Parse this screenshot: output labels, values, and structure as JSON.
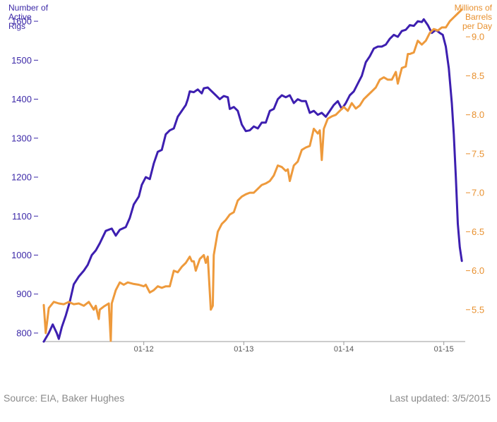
{
  "chart_data": {
    "type": "line",
    "dual_axis": true,
    "title": "",
    "y_left": {
      "label": [
        "Number of",
        "Active",
        "Rigs"
      ],
      "range": [
        780,
        1640
      ],
      "ticks": [
        800,
        900,
        1000,
        1100,
        1200,
        1300,
        1400,
        1500,
        1600
      ],
      "color": "#3d1fb0"
    },
    "y_right": {
      "label": [
        "Millions of",
        "Barrels",
        "per Day"
      ],
      "range": [
        5.1,
        9.4
      ],
      "ticks": [
        "5.5",
        "6.0",
        "6.5",
        "7.0",
        "7.5",
        "8.0",
        "8.5",
        "9.0"
      ],
      "color": "#ee9a3c"
    },
    "x_axis": {
      "range": [
        2011.0,
        2015.2
      ],
      "ticks": [
        {
          "label": "01-12",
          "value": 2012.0
        },
        {
          "label": "01-13",
          "value": 2013.0
        },
        {
          "label": "01-14",
          "value": 2014.0
        },
        {
          "label": "01-15",
          "value": 2015.0
        }
      ]
    },
    "grid": false,
    "series": [
      {
        "axis": "left",
        "color": "#3d1fb0",
        "points": [
          [
            2011.0,
            778
          ],
          [
            2011.05,
            800
          ],
          [
            2011.09,
            822
          ],
          [
            2011.13,
            800
          ],
          [
            2011.15,
            785
          ],
          [
            2011.18,
            815
          ],
          [
            2011.22,
            845
          ],
          [
            2011.26,
            880
          ],
          [
            2011.3,
            925
          ],
          [
            2011.35,
            945
          ],
          [
            2011.4,
            960
          ],
          [
            2011.44,
            975
          ],
          [
            2011.48,
            1000
          ],
          [
            2011.52,
            1012
          ],
          [
            2011.56,
            1030
          ],
          [
            2011.62,
            1062
          ],
          [
            2011.68,
            1068
          ],
          [
            2011.72,
            1050
          ],
          [
            2011.76,
            1065
          ],
          [
            2011.82,
            1072
          ],
          [
            2011.86,
            1095
          ],
          [
            2011.9,
            1130
          ],
          [
            2011.95,
            1150
          ],
          [
            2011.98,
            1180
          ],
          [
            2012.02,
            1200
          ],
          [
            2012.06,
            1195
          ],
          [
            2012.1,
            1235
          ],
          [
            2012.14,
            1265
          ],
          [
            2012.18,
            1270
          ],
          [
            2012.22,
            1310
          ],
          [
            2012.26,
            1320
          ],
          [
            2012.3,
            1325
          ],
          [
            2012.34,
            1355
          ],
          [
            2012.38,
            1370
          ],
          [
            2012.42,
            1385
          ],
          [
            2012.44,
            1400
          ],
          [
            2012.46,
            1420
          ],
          [
            2012.5,
            1418
          ],
          [
            2012.54,
            1425
          ],
          [
            2012.58,
            1415
          ],
          [
            2012.6,
            1428
          ],
          [
            2012.64,
            1430
          ],
          [
            2012.68,
            1420
          ],
          [
            2012.72,
            1410
          ],
          [
            2012.76,
            1400
          ],
          [
            2012.8,
            1408
          ],
          [
            2012.84,
            1405
          ],
          [
            2012.86,
            1375
          ],
          [
            2012.9,
            1380
          ],
          [
            2012.94,
            1370
          ],
          [
            2012.98,
            1335
          ],
          [
            2013.02,
            1318
          ],
          [
            2013.06,
            1320
          ],
          [
            2013.1,
            1330
          ],
          [
            2013.14,
            1325
          ],
          [
            2013.18,
            1340
          ],
          [
            2013.22,
            1340
          ],
          [
            2013.26,
            1370
          ],
          [
            2013.3,
            1375
          ],
          [
            2013.34,
            1400
          ],
          [
            2013.38,
            1410
          ],
          [
            2013.42,
            1405
          ],
          [
            2013.46,
            1410
          ],
          [
            2013.5,
            1390
          ],
          [
            2013.54,
            1400
          ],
          [
            2013.58,
            1395
          ],
          [
            2013.62,
            1395
          ],
          [
            2013.66,
            1365
          ],
          [
            2013.7,
            1370
          ],
          [
            2013.74,
            1360
          ],
          [
            2013.78,
            1365
          ],
          [
            2013.82,
            1355
          ],
          [
            2013.86,
            1370
          ],
          [
            2013.9,
            1385
          ],
          [
            2013.94,
            1395
          ],
          [
            2013.98,
            1375
          ],
          [
            2014.02,
            1390
          ],
          [
            2014.06,
            1410
          ],
          [
            2014.1,
            1420
          ],
          [
            2014.14,
            1440
          ],
          [
            2014.18,
            1460
          ],
          [
            2014.22,
            1495
          ],
          [
            2014.26,
            1510
          ],
          [
            2014.3,
            1530
          ],
          [
            2014.34,
            1535
          ],
          [
            2014.38,
            1535
          ],
          [
            2014.42,
            1540
          ],
          [
            2014.46,
            1555
          ],
          [
            2014.5,
            1565
          ],
          [
            2014.54,
            1560
          ],
          [
            2014.58,
            1575
          ],
          [
            2014.62,
            1578
          ],
          [
            2014.66,
            1590
          ],
          [
            2014.7,
            1588
          ],
          [
            2014.74,
            1600
          ],
          [
            2014.78,
            1598
          ],
          [
            2014.8,
            1605
          ],
          [
            2014.84,
            1590
          ],
          [
            2014.88,
            1570
          ],
          [
            2014.92,
            1578
          ],
          [
            2014.96,
            1570
          ],
          [
            2014.99,
            1565
          ],
          [
            2015.02,
            1535
          ],
          [
            2015.05,
            1480
          ],
          [
            2015.08,
            1390
          ],
          [
            2015.1,
            1310
          ],
          [
            2015.12,
            1200
          ],
          [
            2015.14,
            1080
          ],
          [
            2015.16,
            1020
          ],
          [
            2015.18,
            985
          ]
        ]
      },
      {
        "axis": "right",
        "color": "#ee9a3c",
        "points": [
          [
            2011.0,
            5.56
          ],
          [
            2011.02,
            5.2
          ],
          [
            2011.05,
            5.52
          ],
          [
            2011.1,
            5.6
          ],
          [
            2011.15,
            5.58
          ],
          [
            2011.2,
            5.57
          ],
          [
            2011.25,
            5.6
          ],
          [
            2011.3,
            5.57
          ],
          [
            2011.35,
            5.58
          ],
          [
            2011.4,
            5.55
          ],
          [
            2011.45,
            5.6
          ],
          [
            2011.5,
            5.5
          ],
          [
            2011.52,
            5.55
          ],
          [
            2011.55,
            5.38
          ],
          [
            2011.56,
            5.5
          ],
          [
            2011.6,
            5.54
          ],
          [
            2011.65,
            5.58
          ],
          [
            2011.67,
            5.1
          ],
          [
            2011.68,
            5.58
          ],
          [
            2011.72,
            5.75
          ],
          [
            2011.76,
            5.85
          ],
          [
            2011.8,
            5.82
          ],
          [
            2011.84,
            5.85
          ],
          [
            2011.9,
            5.83
          ],
          [
            2011.95,
            5.82
          ],
          [
            2012.0,
            5.8
          ],
          [
            2012.02,
            5.82
          ],
          [
            2012.06,
            5.72
          ],
          [
            2012.1,
            5.75
          ],
          [
            2012.14,
            5.8
          ],
          [
            2012.18,
            5.78
          ],
          [
            2012.22,
            5.8
          ],
          [
            2012.26,
            5.8
          ],
          [
            2012.3,
            6.0
          ],
          [
            2012.34,
            5.98
          ],
          [
            2012.38,
            6.05
          ],
          [
            2012.42,
            6.1
          ],
          [
            2012.46,
            6.18
          ],
          [
            2012.48,
            6.12
          ],
          [
            2012.5,
            6.12
          ],
          [
            2012.52,
            6.0
          ],
          [
            2012.56,
            6.15
          ],
          [
            2012.6,
            6.2
          ],
          [
            2012.62,
            6.1
          ],
          [
            2012.64,
            6.18
          ],
          [
            2012.67,
            5.5
          ],
          [
            2012.69,
            5.55
          ],
          [
            2012.7,
            6.2
          ],
          [
            2012.74,
            6.5
          ],
          [
            2012.78,
            6.6
          ],
          [
            2012.82,
            6.65
          ],
          [
            2012.86,
            6.72
          ],
          [
            2012.9,
            6.75
          ],
          [
            2012.94,
            6.9
          ],
          [
            2012.98,
            6.95
          ],
          [
            2013.02,
            6.98
          ],
          [
            2013.06,
            7.0
          ],
          [
            2013.1,
            7.0
          ],
          [
            2013.14,
            7.05
          ],
          [
            2013.18,
            7.1
          ],
          [
            2013.22,
            7.12
          ],
          [
            2013.26,
            7.15
          ],
          [
            2013.3,
            7.22
          ],
          [
            2013.34,
            7.35
          ],
          [
            2013.38,
            7.33
          ],
          [
            2013.42,
            7.28
          ],
          [
            2013.44,
            7.3
          ],
          [
            2013.46,
            7.15
          ],
          [
            2013.5,
            7.35
          ],
          [
            2013.54,
            7.4
          ],
          [
            2013.58,
            7.55
          ],
          [
            2013.62,
            7.58
          ],
          [
            2013.66,
            7.6
          ],
          [
            2013.7,
            7.82
          ],
          [
            2013.74,
            7.76
          ],
          [
            2013.76,
            7.8
          ],
          [
            2013.78,
            7.42
          ],
          [
            2013.8,
            7.82
          ],
          [
            2013.84,
            7.95
          ],
          [
            2013.88,
            7.98
          ],
          [
            2013.92,
            8.0
          ],
          [
            2013.96,
            8.05
          ],
          [
            2014.0,
            8.1
          ],
          [
            2014.04,
            8.05
          ],
          [
            2014.08,
            8.15
          ],
          [
            2014.12,
            8.08
          ],
          [
            2014.16,
            8.12
          ],
          [
            2014.2,
            8.2
          ],
          [
            2014.24,
            8.25
          ],
          [
            2014.28,
            8.3
          ],
          [
            2014.32,
            8.35
          ],
          [
            2014.36,
            8.45
          ],
          [
            2014.4,
            8.48
          ],
          [
            2014.44,
            8.45
          ],
          [
            2014.48,
            8.45
          ],
          [
            2014.52,
            8.55
          ],
          [
            2014.54,
            8.4
          ],
          [
            2014.58,
            8.6
          ],
          [
            2014.62,
            8.62
          ],
          [
            2014.64,
            8.78
          ],
          [
            2014.66,
            8.78
          ],
          [
            2014.7,
            8.8
          ],
          [
            2014.74,
            8.95
          ],
          [
            2014.78,
            8.9
          ],
          [
            2014.82,
            8.95
          ],
          [
            2014.86,
            9.05
          ],
          [
            2014.9,
            9.1
          ],
          [
            2014.94,
            9.08
          ],
          [
            2014.98,
            9.12
          ],
          [
            2015.02,
            9.12
          ],
          [
            2015.06,
            9.2
          ],
          [
            2015.1,
            9.25
          ],
          [
            2015.14,
            9.3
          ],
          [
            2015.18,
            9.35
          ]
        ]
      }
    ]
  },
  "footer": {
    "source": "Source: EIA, Baker Hughes",
    "updated": "Last updated: 3/5/2015"
  }
}
